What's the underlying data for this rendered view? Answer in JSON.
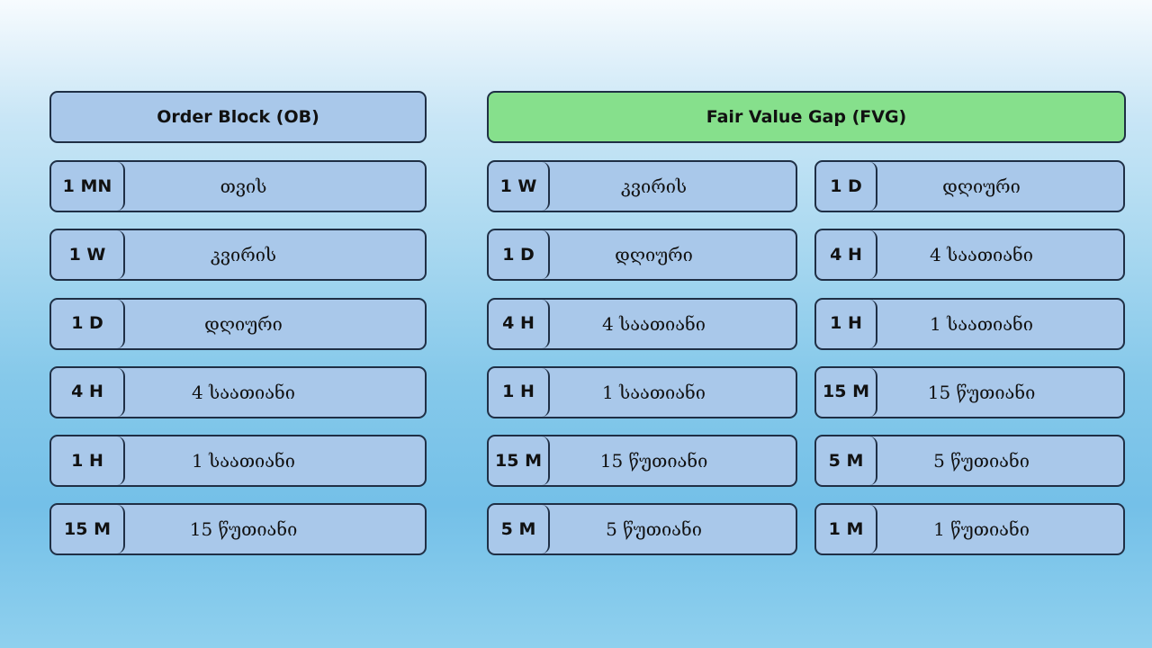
{
  "order_block": {
    "title": "Order Block (OB)",
    "rows": [
      {
        "tf": "1 MN",
        "label": "თვის"
      },
      {
        "tf": "1 W",
        "label": "კვირის"
      },
      {
        "tf": "1 D",
        "label": "დღიური"
      },
      {
        "tf": "4 H",
        "label": "4 საათიანი"
      },
      {
        "tf": "1 H",
        "label": "1 საათიანი"
      },
      {
        "tf": "15 M",
        "label": "15 წუთიანი"
      }
    ]
  },
  "fair_value_gap": {
    "title": "Fair Value Gap (FVG)",
    "left_rows": [
      {
        "tf": "1 W",
        "label": "კვირის"
      },
      {
        "tf": "1 D",
        "label": "დღიური"
      },
      {
        "tf": "4 H",
        "label": "4 საათიანი"
      },
      {
        "tf": "1 H",
        "label": "1 საათიანი"
      },
      {
        "tf": "15 M",
        "label": "15 წუთიანი"
      },
      {
        "tf": "5 M",
        "label": "5 წუთიანი"
      }
    ],
    "right_rows": [
      {
        "tf": "1 D",
        "label": "დღიური"
      },
      {
        "tf": "4 H",
        "label": "4 საათიანი"
      },
      {
        "tf": "1 H",
        "label": "1 საათიანი"
      },
      {
        "tf": "15 M",
        "label": "15 წუთიანი"
      },
      {
        "tf": "5 M",
        "label": "5 წუთიანი"
      },
      {
        "tf": "1 M",
        "label": "1 წუთიანი"
      }
    ]
  },
  "colors": {
    "box_fill": "#a9c8ea",
    "fvg_header_fill": "#86e08c",
    "border": "#1f2f45"
  }
}
